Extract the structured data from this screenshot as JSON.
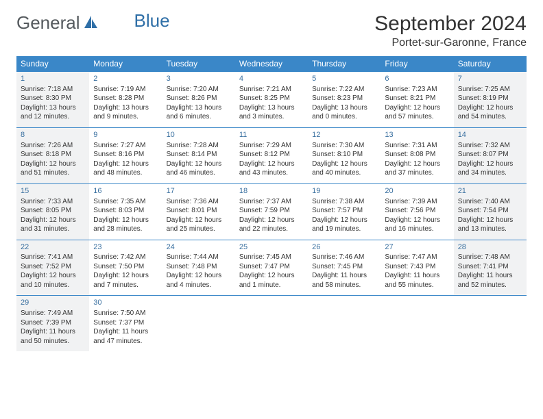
{
  "logo": {
    "text1": "General",
    "text2": "Blue"
  },
  "title": "September 2024",
  "location": "Portet-sur-Garonne, France",
  "colors": {
    "header_bg": "#3a87c8",
    "header_text": "#ffffff",
    "shade_bg": "#f1f2f3",
    "daynum_color": "#3a70a0",
    "border_color": "#3a87c8",
    "logo_gray": "#555a5e",
    "logo_blue": "#2f6fa7"
  },
  "fonts": {
    "month_title_pt": 30,
    "location_pt": 16,
    "dayhead_pt": 12,
    "daynum_pt": 11,
    "body_pt": 10
  },
  "day_headers": [
    "Sunday",
    "Monday",
    "Tuesday",
    "Wednesday",
    "Thursday",
    "Friday",
    "Saturday"
  ],
  "weeks": [
    [
      {
        "n": "1",
        "sr": "Sunrise: 7:18 AM",
        "ss": "Sunset: 8:30 PM",
        "dl1": "Daylight: 13 hours",
        "dl2": "and 12 minutes.",
        "shade": true
      },
      {
        "n": "2",
        "sr": "Sunrise: 7:19 AM",
        "ss": "Sunset: 8:28 PM",
        "dl1": "Daylight: 13 hours",
        "dl2": "and 9 minutes."
      },
      {
        "n": "3",
        "sr": "Sunrise: 7:20 AM",
        "ss": "Sunset: 8:26 PM",
        "dl1": "Daylight: 13 hours",
        "dl2": "and 6 minutes."
      },
      {
        "n": "4",
        "sr": "Sunrise: 7:21 AM",
        "ss": "Sunset: 8:25 PM",
        "dl1": "Daylight: 13 hours",
        "dl2": "and 3 minutes."
      },
      {
        "n": "5",
        "sr": "Sunrise: 7:22 AM",
        "ss": "Sunset: 8:23 PM",
        "dl1": "Daylight: 13 hours",
        "dl2": "and 0 minutes."
      },
      {
        "n": "6",
        "sr": "Sunrise: 7:23 AM",
        "ss": "Sunset: 8:21 PM",
        "dl1": "Daylight: 12 hours",
        "dl2": "and 57 minutes."
      },
      {
        "n": "7",
        "sr": "Sunrise: 7:25 AM",
        "ss": "Sunset: 8:19 PM",
        "dl1": "Daylight: 12 hours",
        "dl2": "and 54 minutes.",
        "shade": true
      }
    ],
    [
      {
        "n": "8",
        "sr": "Sunrise: 7:26 AM",
        "ss": "Sunset: 8:18 PM",
        "dl1": "Daylight: 12 hours",
        "dl2": "and 51 minutes.",
        "shade": true
      },
      {
        "n": "9",
        "sr": "Sunrise: 7:27 AM",
        "ss": "Sunset: 8:16 PM",
        "dl1": "Daylight: 12 hours",
        "dl2": "and 48 minutes."
      },
      {
        "n": "10",
        "sr": "Sunrise: 7:28 AM",
        "ss": "Sunset: 8:14 PM",
        "dl1": "Daylight: 12 hours",
        "dl2": "and 46 minutes."
      },
      {
        "n": "11",
        "sr": "Sunrise: 7:29 AM",
        "ss": "Sunset: 8:12 PM",
        "dl1": "Daylight: 12 hours",
        "dl2": "and 43 minutes."
      },
      {
        "n": "12",
        "sr": "Sunrise: 7:30 AM",
        "ss": "Sunset: 8:10 PM",
        "dl1": "Daylight: 12 hours",
        "dl2": "and 40 minutes."
      },
      {
        "n": "13",
        "sr": "Sunrise: 7:31 AM",
        "ss": "Sunset: 8:08 PM",
        "dl1": "Daylight: 12 hours",
        "dl2": "and 37 minutes."
      },
      {
        "n": "14",
        "sr": "Sunrise: 7:32 AM",
        "ss": "Sunset: 8:07 PM",
        "dl1": "Daylight: 12 hours",
        "dl2": "and 34 minutes.",
        "shade": true
      }
    ],
    [
      {
        "n": "15",
        "sr": "Sunrise: 7:33 AM",
        "ss": "Sunset: 8:05 PM",
        "dl1": "Daylight: 12 hours",
        "dl2": "and 31 minutes.",
        "shade": true
      },
      {
        "n": "16",
        "sr": "Sunrise: 7:35 AM",
        "ss": "Sunset: 8:03 PM",
        "dl1": "Daylight: 12 hours",
        "dl2": "and 28 minutes."
      },
      {
        "n": "17",
        "sr": "Sunrise: 7:36 AM",
        "ss": "Sunset: 8:01 PM",
        "dl1": "Daylight: 12 hours",
        "dl2": "and 25 minutes."
      },
      {
        "n": "18",
        "sr": "Sunrise: 7:37 AM",
        "ss": "Sunset: 7:59 PM",
        "dl1": "Daylight: 12 hours",
        "dl2": "and 22 minutes."
      },
      {
        "n": "19",
        "sr": "Sunrise: 7:38 AM",
        "ss": "Sunset: 7:57 PM",
        "dl1": "Daylight: 12 hours",
        "dl2": "and 19 minutes."
      },
      {
        "n": "20",
        "sr": "Sunrise: 7:39 AM",
        "ss": "Sunset: 7:56 PM",
        "dl1": "Daylight: 12 hours",
        "dl2": "and 16 minutes."
      },
      {
        "n": "21",
        "sr": "Sunrise: 7:40 AM",
        "ss": "Sunset: 7:54 PM",
        "dl1": "Daylight: 12 hours",
        "dl2": "and 13 minutes.",
        "shade": true
      }
    ],
    [
      {
        "n": "22",
        "sr": "Sunrise: 7:41 AM",
        "ss": "Sunset: 7:52 PM",
        "dl1": "Daylight: 12 hours",
        "dl2": "and 10 minutes.",
        "shade": true
      },
      {
        "n": "23",
        "sr": "Sunrise: 7:42 AM",
        "ss": "Sunset: 7:50 PM",
        "dl1": "Daylight: 12 hours",
        "dl2": "and 7 minutes."
      },
      {
        "n": "24",
        "sr": "Sunrise: 7:44 AM",
        "ss": "Sunset: 7:48 PM",
        "dl1": "Daylight: 12 hours",
        "dl2": "and 4 minutes."
      },
      {
        "n": "25",
        "sr": "Sunrise: 7:45 AM",
        "ss": "Sunset: 7:47 PM",
        "dl1": "Daylight: 12 hours",
        "dl2": "and 1 minute."
      },
      {
        "n": "26",
        "sr": "Sunrise: 7:46 AM",
        "ss": "Sunset: 7:45 PM",
        "dl1": "Daylight: 11 hours",
        "dl2": "and 58 minutes."
      },
      {
        "n": "27",
        "sr": "Sunrise: 7:47 AM",
        "ss": "Sunset: 7:43 PM",
        "dl1": "Daylight: 11 hours",
        "dl2": "and 55 minutes."
      },
      {
        "n": "28",
        "sr": "Sunrise: 7:48 AM",
        "ss": "Sunset: 7:41 PM",
        "dl1": "Daylight: 11 hours",
        "dl2": "and 52 minutes.",
        "shade": true
      }
    ],
    [
      {
        "n": "29",
        "sr": "Sunrise: 7:49 AM",
        "ss": "Sunset: 7:39 PM",
        "dl1": "Daylight: 11 hours",
        "dl2": "and 50 minutes.",
        "shade": true
      },
      {
        "n": "30",
        "sr": "Sunrise: 7:50 AM",
        "ss": "Sunset: 7:37 PM",
        "dl1": "Daylight: 11 hours",
        "dl2": "and 47 minutes."
      },
      {
        "empty": true
      },
      {
        "empty": true
      },
      {
        "empty": true
      },
      {
        "empty": true
      },
      {
        "empty": true
      }
    ]
  ]
}
